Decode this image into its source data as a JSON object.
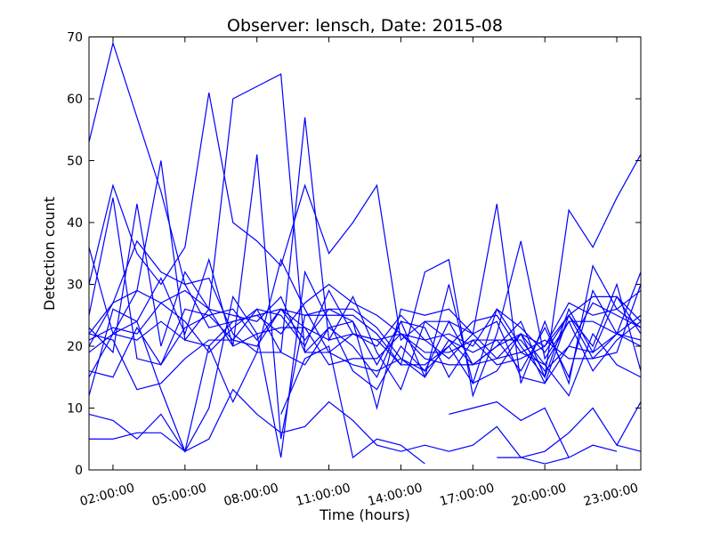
{
  "chart_data": {
    "type": "line",
    "title": "Observer: lensch, Date: 2015-08",
    "xlabel": "Time (hours)",
    "ylabel": "Detection count",
    "xlim": [
      1,
      24
    ],
    "ylim": [
      0,
      70
    ],
    "x_ticks": [
      2,
      5,
      8,
      11,
      14,
      17,
      20,
      23
    ],
    "x_tick_labels": [
      "02:00:00",
      "05:00:00",
      "08:00:00",
      "11:00:00",
      "14:00:00",
      "17:00:00",
      "20:00:00",
      "23:00:00"
    ],
    "y_ticks": [
      0,
      10,
      20,
      30,
      40,
      50,
      60,
      70
    ],
    "y_tick_labels": [
      "0",
      "10",
      "20",
      "30",
      "40",
      "50",
      "60",
      "70"
    ],
    "grid": false,
    "legend": "none",
    "line_color": "#0000ff",
    "x": [
      1,
      2,
      3,
      4,
      5,
      6,
      7,
      8,
      9,
      10,
      11,
      12,
      13,
      14,
      15,
      16,
      17,
      18,
      19,
      20,
      21,
      22,
      23,
      24
    ],
    "series": [
      {
        "values": [
          53,
          69,
          57,
          45,
          30,
          31,
          22,
          19,
          19,
          57,
          21,
          28,
          19,
          13,
          24,
          21,
          17,
          20,
          22,
          17,
          24,
          16,
          21,
          24
        ]
      },
      {
        "values": [
          36,
          22,
          29,
          50,
          21,
          26,
          60,
          62,
          64,
          19,
          19,
          22,
          20,
          25,
          21,
          22,
          20,
          26,
          20,
          15,
          42,
          36,
          44,
          51
        ]
      },
      {
        "values": [
          30,
          46,
          35,
          30,
          36,
          61,
          40,
          37,
          33,
          46,
          35,
          40,
          46,
          21,
          24,
          24,
          22,
          43,
          14,
          24,
          14,
          33,
          26,
          23
        ]
      },
      {
        "values": [
          12,
          26,
          24,
          31,
          22,
          34,
          20,
          51,
          5,
          25,
          25,
          25,
          22,
          17,
          32,
          34,
          12,
          22,
          37,
          18,
          24,
          24,
          22,
          32
        ]
      },
      {
        "values": [
          20,
          27,
          37,
          32,
          30,
          23,
          24,
          25,
          22,
          27,
          30,
          27,
          25,
          22,
          21,
          18,
          22,
          18,
          22,
          20,
          27,
          25,
          26,
          29
        ]
      },
      {
        "values": [
          23,
          19,
          43,
          20,
          32,
          26,
          25,
          24,
          28,
          19,
          23,
          24,
          10,
          26,
          25,
          26,
          22,
          24,
          15,
          14,
          25,
          28,
          28,
          24
        ]
      },
      {
        "values": [
          25,
          44,
          18,
          17,
          26,
          25,
          21,
          20,
          26,
          21,
          26,
          26,
          23,
          18,
          15,
          30,
          14,
          16,
          22,
          14,
          20,
          27,
          25,
          23
        ]
      },
      {
        "values": [
          22,
          27,
          29,
          27,
          29,
          26,
          20,
          22,
          23,
          23,
          21,
          22,
          21,
          17,
          17,
          20,
          24,
          25,
          19,
          21,
          18,
          18,
          22,
          21
        ]
      },
      {
        "values": [
          21,
          23,
          22,
          27,
          24,
          19,
          23,
          26,
          25,
          20,
          29,
          22,
          21,
          22,
          18,
          17,
          17,
          20,
          24,
          15,
          26,
          19,
          28,
          22
        ]
      },
      {
        "values": [
          19,
          22,
          21,
          24,
          21,
          20,
          24,
          25,
          26,
          25,
          26,
          24,
          17,
          24,
          23,
          15,
          21,
          21,
          16,
          23,
          15,
          29,
          22,
          20
        ]
      },
      {
        "values": [
          16,
          15,
          23,
          17,
          23,
          25,
          26,
          21,
          26,
          23,
          17,
          18,
          18,
          22,
          19,
          19,
          21,
          17,
          18,
          20,
          25,
          18,
          19,
          30
        ]
      },
      {
        "values": [
          22,
          21,
          13,
          14,
          18,
          21,
          21,
          26,
          19,
          17,
          23,
          20,
          15,
          24,
          15,
          21,
          19,
          21,
          21,
          16,
          20,
          19,
          22,
          25
        ]
      },
      {
        "values": [
          15,
          22,
          24,
          13,
          3,
          20,
          11,
          19,
          34,
          26,
          19,
          17,
          16,
          18,
          16,
          24,
          17,
          18,
          19,
          17,
          12,
          22,
          17,
          15
        ]
      },
      {
        "values": [
          9,
          8,
          5,
          9,
          3,
          10,
          28,
          22,
          2,
          32,
          24,
          16,
          13,
          20,
          16,
          20,
          14,
          26,
          23,
          19,
          25,
          20,
          30,
          16
        ]
      },
      {
        "values": [
          5,
          5,
          6,
          6,
          3,
          5,
          13,
          9,
          6,
          7,
          11,
          8,
          4,
          3,
          4,
          3,
          4,
          7,
          2,
          3,
          6,
          10,
          4,
          11
        ]
      },
      {
        "values": [
          null,
          null,
          null,
          null,
          null,
          null,
          null,
          null,
          9,
          18,
          20,
          2,
          5,
          4,
          1,
          null,
          null,
          null,
          null,
          null,
          null,
          null,
          null,
          null
        ]
      },
      {
        "values": [
          null,
          null,
          null,
          null,
          null,
          null,
          null,
          null,
          null,
          null,
          null,
          null,
          null,
          null,
          null,
          9,
          10,
          11,
          8,
          10,
          2,
          null,
          null,
          null
        ]
      },
      {
        "values": [
          null,
          null,
          null,
          null,
          null,
          null,
          null,
          null,
          null,
          null,
          null,
          null,
          null,
          null,
          null,
          null,
          null,
          2,
          2,
          1,
          2,
          4,
          3,
          null
        ]
      },
      {
        "values": [
          null,
          null,
          null,
          null,
          null,
          null,
          null,
          null,
          null,
          null,
          null,
          null,
          null,
          null,
          null,
          null,
          null,
          null,
          null,
          null,
          null,
          null,
          4,
          3
        ]
      }
    ]
  }
}
